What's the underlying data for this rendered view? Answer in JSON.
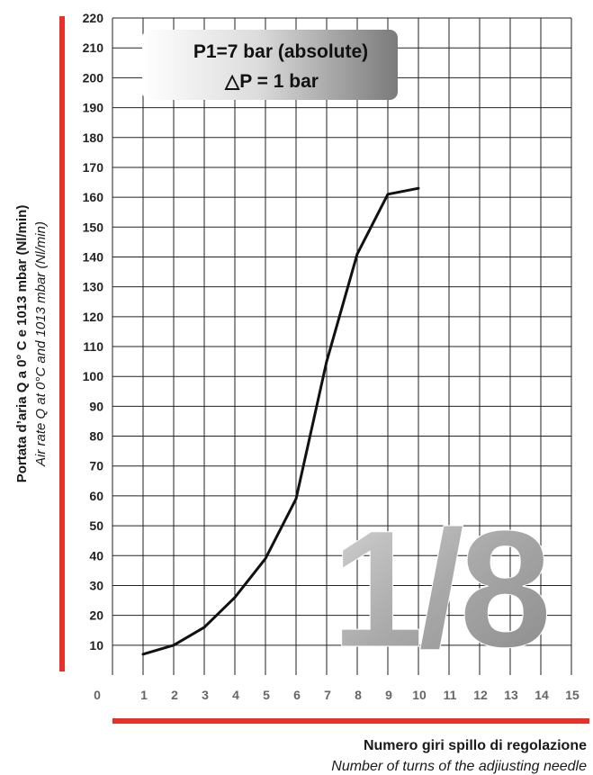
{
  "chart_data": {
    "type": "line",
    "ylabel": "Portata d’aria Q a 0° C e 1013 mbar (Nl/min)",
    "ylabel_secondary": "Air rate Q at 0°C and 1013 mbar (Nl/min)",
    "xlabel": "Numero giri spillo di regolazione",
    "xlabel_secondary": "Number of turns of the adjiusting needle",
    "xlim": [
      0,
      15
    ],
    "ylim": [
      0,
      220
    ],
    "x_ticks": [
      "0",
      "1",
      "2",
      "3",
      "4",
      "5",
      "6",
      "7",
      "8",
      "9",
      "10",
      "11",
      "12",
      "13",
      "14",
      "15"
    ],
    "y_ticks": [
      "10",
      "20",
      "30",
      "40",
      "50",
      "60",
      "70",
      "80",
      "90",
      "100",
      "110",
      "120",
      "130",
      "140",
      "150",
      "160",
      "170",
      "180",
      "190",
      "200",
      "210",
      "220"
    ],
    "grid": true,
    "accent_color": "#e8302a",
    "line_color": "#111111",
    "series": [
      {
        "x": [
          1,
          2,
          3,
          4,
          5,
          6,
          7,
          8,
          9,
          10
        ],
        "values": [
          7,
          10,
          16,
          26,
          39,
          59,
          105,
          141,
          161,
          163
        ]
      }
    ],
    "annotation": {
      "line1": "P1=7 bar (absolute)",
      "line2": "△P = 1 bar"
    },
    "watermark": "1/8"
  }
}
